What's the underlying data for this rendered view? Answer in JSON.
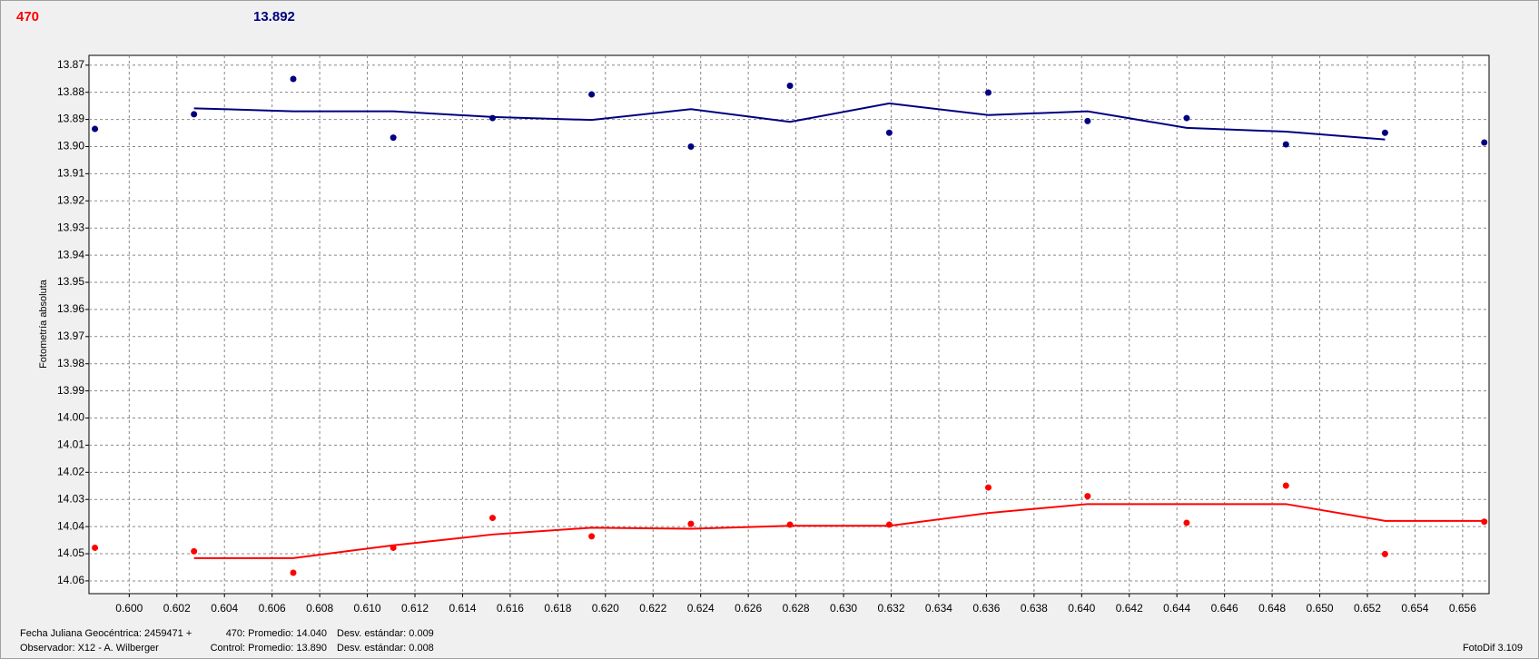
{
  "header": {
    "target": "470",
    "control": "13.892"
  },
  "chart_data": {
    "type": "scatter",
    "ylabel": "Fotometría absoluta",
    "x": [
      0.59856,
      0.60272,
      0.60689,
      0.61109,
      0.61526,
      0.61942,
      0.62359,
      0.62775,
      0.63192,
      0.63608,
      0.64025,
      0.64441,
      0.64858,
      0.65274,
      0.65691
    ],
    "series": [
      {
        "style": "points",
        "color": "#000080",
        "values": [
          13.8935,
          13.8881,
          13.8751,
          13.8967,
          13.8895,
          13.8808,
          13.9,
          13.8776,
          13.8949,
          13.8801,
          13.8906,
          13.8895,
          13.8992,
          13.8949,
          13.8985
        ]
      },
      {
        "style": "line",
        "color": "#000080",
        "values": [
          null,
          13.8859,
          13.887,
          13.887,
          13.8891,
          13.8902,
          13.8862,
          13.8909,
          13.8841,
          13.8884,
          13.887,
          13.8931,
          13.8945,
          13.8974,
          null
        ]
      },
      {
        "style": "points",
        "color": "#ff0000",
        "values": [
          14.0478,
          14.0491,
          14.057,
          14.0478,
          14.0368,
          14.0436,
          14.039,
          14.0393,
          14.0393,
          14.0256,
          14.0288,
          14.0386,
          14.0249,
          14.0501,
          14.0382
        ]
      },
      {
        "style": "line",
        "color": "#ff0000",
        "values": [
          null,
          14.0516,
          14.0516,
          14.0469,
          14.0429,
          14.0404,
          14.0408,
          14.0397,
          14.0397,
          14.035,
          14.0317,
          14.0317,
          14.0317,
          14.0379,
          14.0379
        ]
      }
    ],
    "xlim": [
      0.59831,
      0.65711
    ],
    "ylim": [
      14.0647,
      13.8664
    ],
    "grid": true,
    "xticks": [
      {
        "value": 0.6,
        "label": "0.600"
      },
      {
        "value": 0.602,
        "label": "0.602"
      },
      {
        "value": 0.604,
        "label": "0.604"
      },
      {
        "value": 0.606,
        "label": "0.606"
      },
      {
        "value": 0.608,
        "label": "0.608"
      },
      {
        "value": 0.61,
        "label": "0.610"
      },
      {
        "value": 0.612,
        "label": "0.612"
      },
      {
        "value": 0.614,
        "label": "0.614"
      },
      {
        "value": 0.616,
        "label": "0.616"
      },
      {
        "value": 0.618,
        "label": "0.618"
      },
      {
        "value": 0.62,
        "label": "0.620"
      },
      {
        "value": 0.622,
        "label": "0.622"
      },
      {
        "value": 0.624,
        "label": "0.624"
      },
      {
        "value": 0.626,
        "label": "0.626"
      },
      {
        "value": 0.628,
        "label": "0.628"
      },
      {
        "value": 0.63,
        "label": "0.630"
      },
      {
        "value": 0.632,
        "label": "0.632"
      },
      {
        "value": 0.634,
        "label": "0.634"
      },
      {
        "value": 0.636,
        "label": "0.636"
      },
      {
        "value": 0.638,
        "label": "0.638"
      },
      {
        "value": 0.64,
        "label": "0.640"
      },
      {
        "value": 0.642,
        "label": "0.642"
      },
      {
        "value": 0.644,
        "label": "0.644"
      },
      {
        "value": 0.646,
        "label": "0.646"
      },
      {
        "value": 0.648,
        "label": "0.648"
      },
      {
        "value": 0.65,
        "label": "0.650"
      },
      {
        "value": 0.652,
        "label": "0.652"
      },
      {
        "value": 0.654,
        "label": "0.654"
      },
      {
        "value": 0.656,
        "label": "0.656"
      }
    ],
    "yticks": [
      13.87,
      13.88,
      13.89,
      {
        "value": 13.9,
        "label": "13.90"
      },
      13.91,
      13.92,
      13.93,
      13.94,
      13.95,
      13.96,
      13.97,
      13.98,
      13.99,
      {
        "value": 14.0,
        "label": "14.00"
      },
      14.01,
      14.02,
      14.03,
      14.04,
      14.05,
      14.06
    ]
  },
  "footer": {
    "date": "Fecha Juliana Geocéntrica: 2459471 +",
    "observer": "Observador: X12 - A. Wilberger",
    "target_mean": "470: Promedio: 14.040",
    "target_sd": "Desv. estándar: 0.009",
    "control_mean": "Control: Promedio: 13.890",
    "control_sd": "Desv. estándar: 0.008",
    "version": "FotoDif 3.109"
  }
}
